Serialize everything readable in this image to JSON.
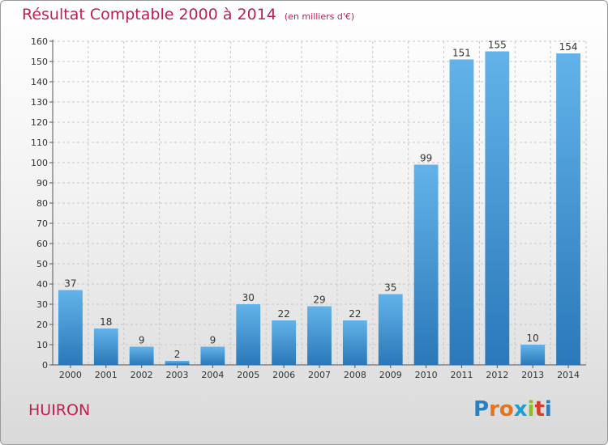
{
  "header": {
    "title": "Résultat Comptable 2000 à 2014",
    "subtitle": "(en milliers d'€)"
  },
  "footer": {
    "place": "HUIRON"
  },
  "logo": {
    "text": "Proxiti",
    "letters": [
      "P",
      "r",
      "o",
      "x",
      "i",
      "t",
      "i"
    ],
    "colors": [
      "#2a7fc1",
      "#e8731a",
      "#e8731a",
      "#1a9fd4",
      "#8bbd2a",
      "#d4402a",
      "#2a7fc1"
    ]
  },
  "colors": {
    "bar_top": "#63b3ea",
    "bar_bottom": "#2a78b8",
    "title": "#c0204f"
  },
  "chart_data": {
    "type": "bar",
    "title": "Résultat Comptable 2000 à 2014",
    "subtitle": "(en milliers d'€)",
    "categories": [
      "2000",
      "2001",
      "2002",
      "2003",
      "2004",
      "2005",
      "2006",
      "2007",
      "2008",
      "2009",
      "2010",
      "2011",
      "2012",
      "2013",
      "2014"
    ],
    "values": [
      37,
      18,
      9,
      2,
      9,
      30,
      22,
      29,
      22,
      35,
      99,
      151,
      155,
      10,
      154
    ],
    "ylim": [
      0,
      160
    ],
    "yticks": [
      0,
      10,
      20,
      30,
      40,
      50,
      60,
      70,
      80,
      90,
      100,
      110,
      120,
      130,
      140,
      150,
      160
    ],
    "grid": true,
    "data_labels": true
  }
}
